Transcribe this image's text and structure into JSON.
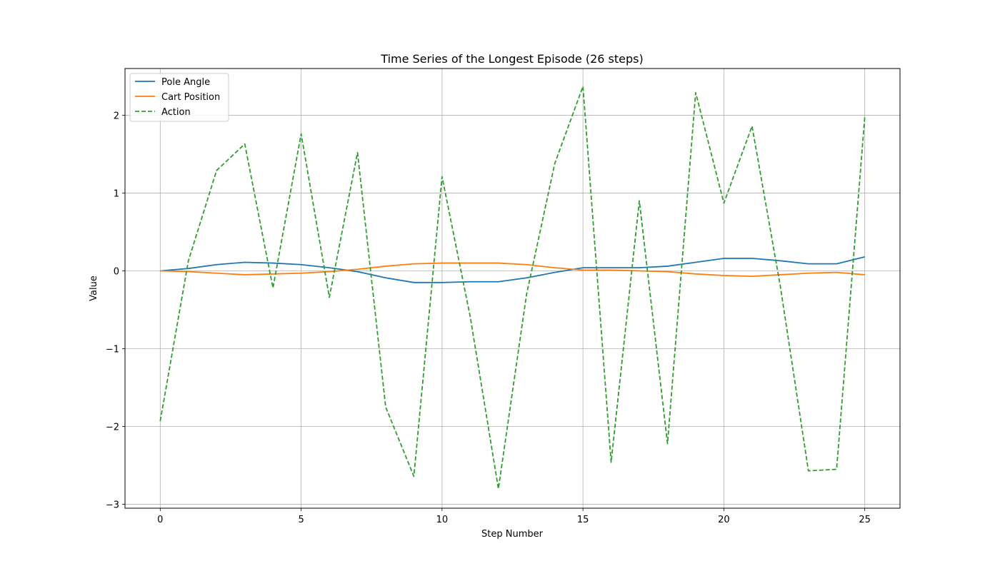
{
  "chart_data": {
    "type": "line",
    "title": "Time Series of the Longest Episode (26 steps)",
    "xlabel": "Step Number",
    "ylabel": "Value",
    "xlim": [
      -1.25,
      26.25
    ],
    "ylim": [
      -3.05,
      2.6
    ],
    "xticks": [
      0,
      5,
      10,
      15,
      20,
      25
    ],
    "xtick_labels": [
      "0",
      "5",
      "10",
      "15",
      "20",
      "25"
    ],
    "yticks": [
      -3,
      -2,
      -1,
      0,
      1,
      2
    ],
    "ytick_labels": [
      "−3",
      "−2",
      "−1",
      "0",
      "1",
      "2"
    ],
    "grid": true,
    "legend_position": "top-left",
    "x": [
      0,
      1,
      2,
      3,
      4,
      5,
      6,
      7,
      8,
      9,
      10,
      11,
      12,
      13,
      14,
      15,
      16,
      17,
      18,
      19,
      20,
      21,
      22,
      23,
      24,
      25
    ],
    "series": [
      {
        "name": "Pole Angle",
        "color": "#1f77b4",
        "style": "solid",
        "values": [
          0.0,
          0.03,
          0.08,
          0.11,
          0.1,
          0.08,
          0.04,
          -0.01,
          -0.09,
          -0.15,
          -0.15,
          -0.14,
          -0.14,
          -0.09,
          -0.02,
          0.04,
          0.04,
          0.04,
          0.06,
          0.11,
          0.16,
          0.16,
          0.13,
          0.09,
          0.09,
          0.18
        ]
      },
      {
        "name": "Cart Position",
        "color": "#ff7f0e",
        "style": "solid",
        "values": [
          0.0,
          -0.01,
          -0.03,
          -0.05,
          -0.04,
          -0.03,
          -0.01,
          0.02,
          0.06,
          0.09,
          0.1,
          0.1,
          0.1,
          0.08,
          0.04,
          0.01,
          0.01,
          0.0,
          -0.01,
          -0.04,
          -0.06,
          -0.07,
          -0.05,
          -0.03,
          -0.02,
          -0.05
        ]
      },
      {
        "name": "Action",
        "color": "#2ca02c",
        "style": "dashed",
        "values": [
          -1.93,
          0.13,
          1.29,
          1.63,
          -0.22,
          1.76,
          -0.34,
          1.52,
          -1.75,
          -2.64,
          1.21,
          -0.59,
          -2.8,
          -0.3,
          1.38,
          2.37,
          -2.46,
          0.9,
          -2.22,
          2.29,
          0.87,
          1.86,
          -0.19,
          -2.57,
          -2.55,
          1.98
        ]
      }
    ]
  }
}
